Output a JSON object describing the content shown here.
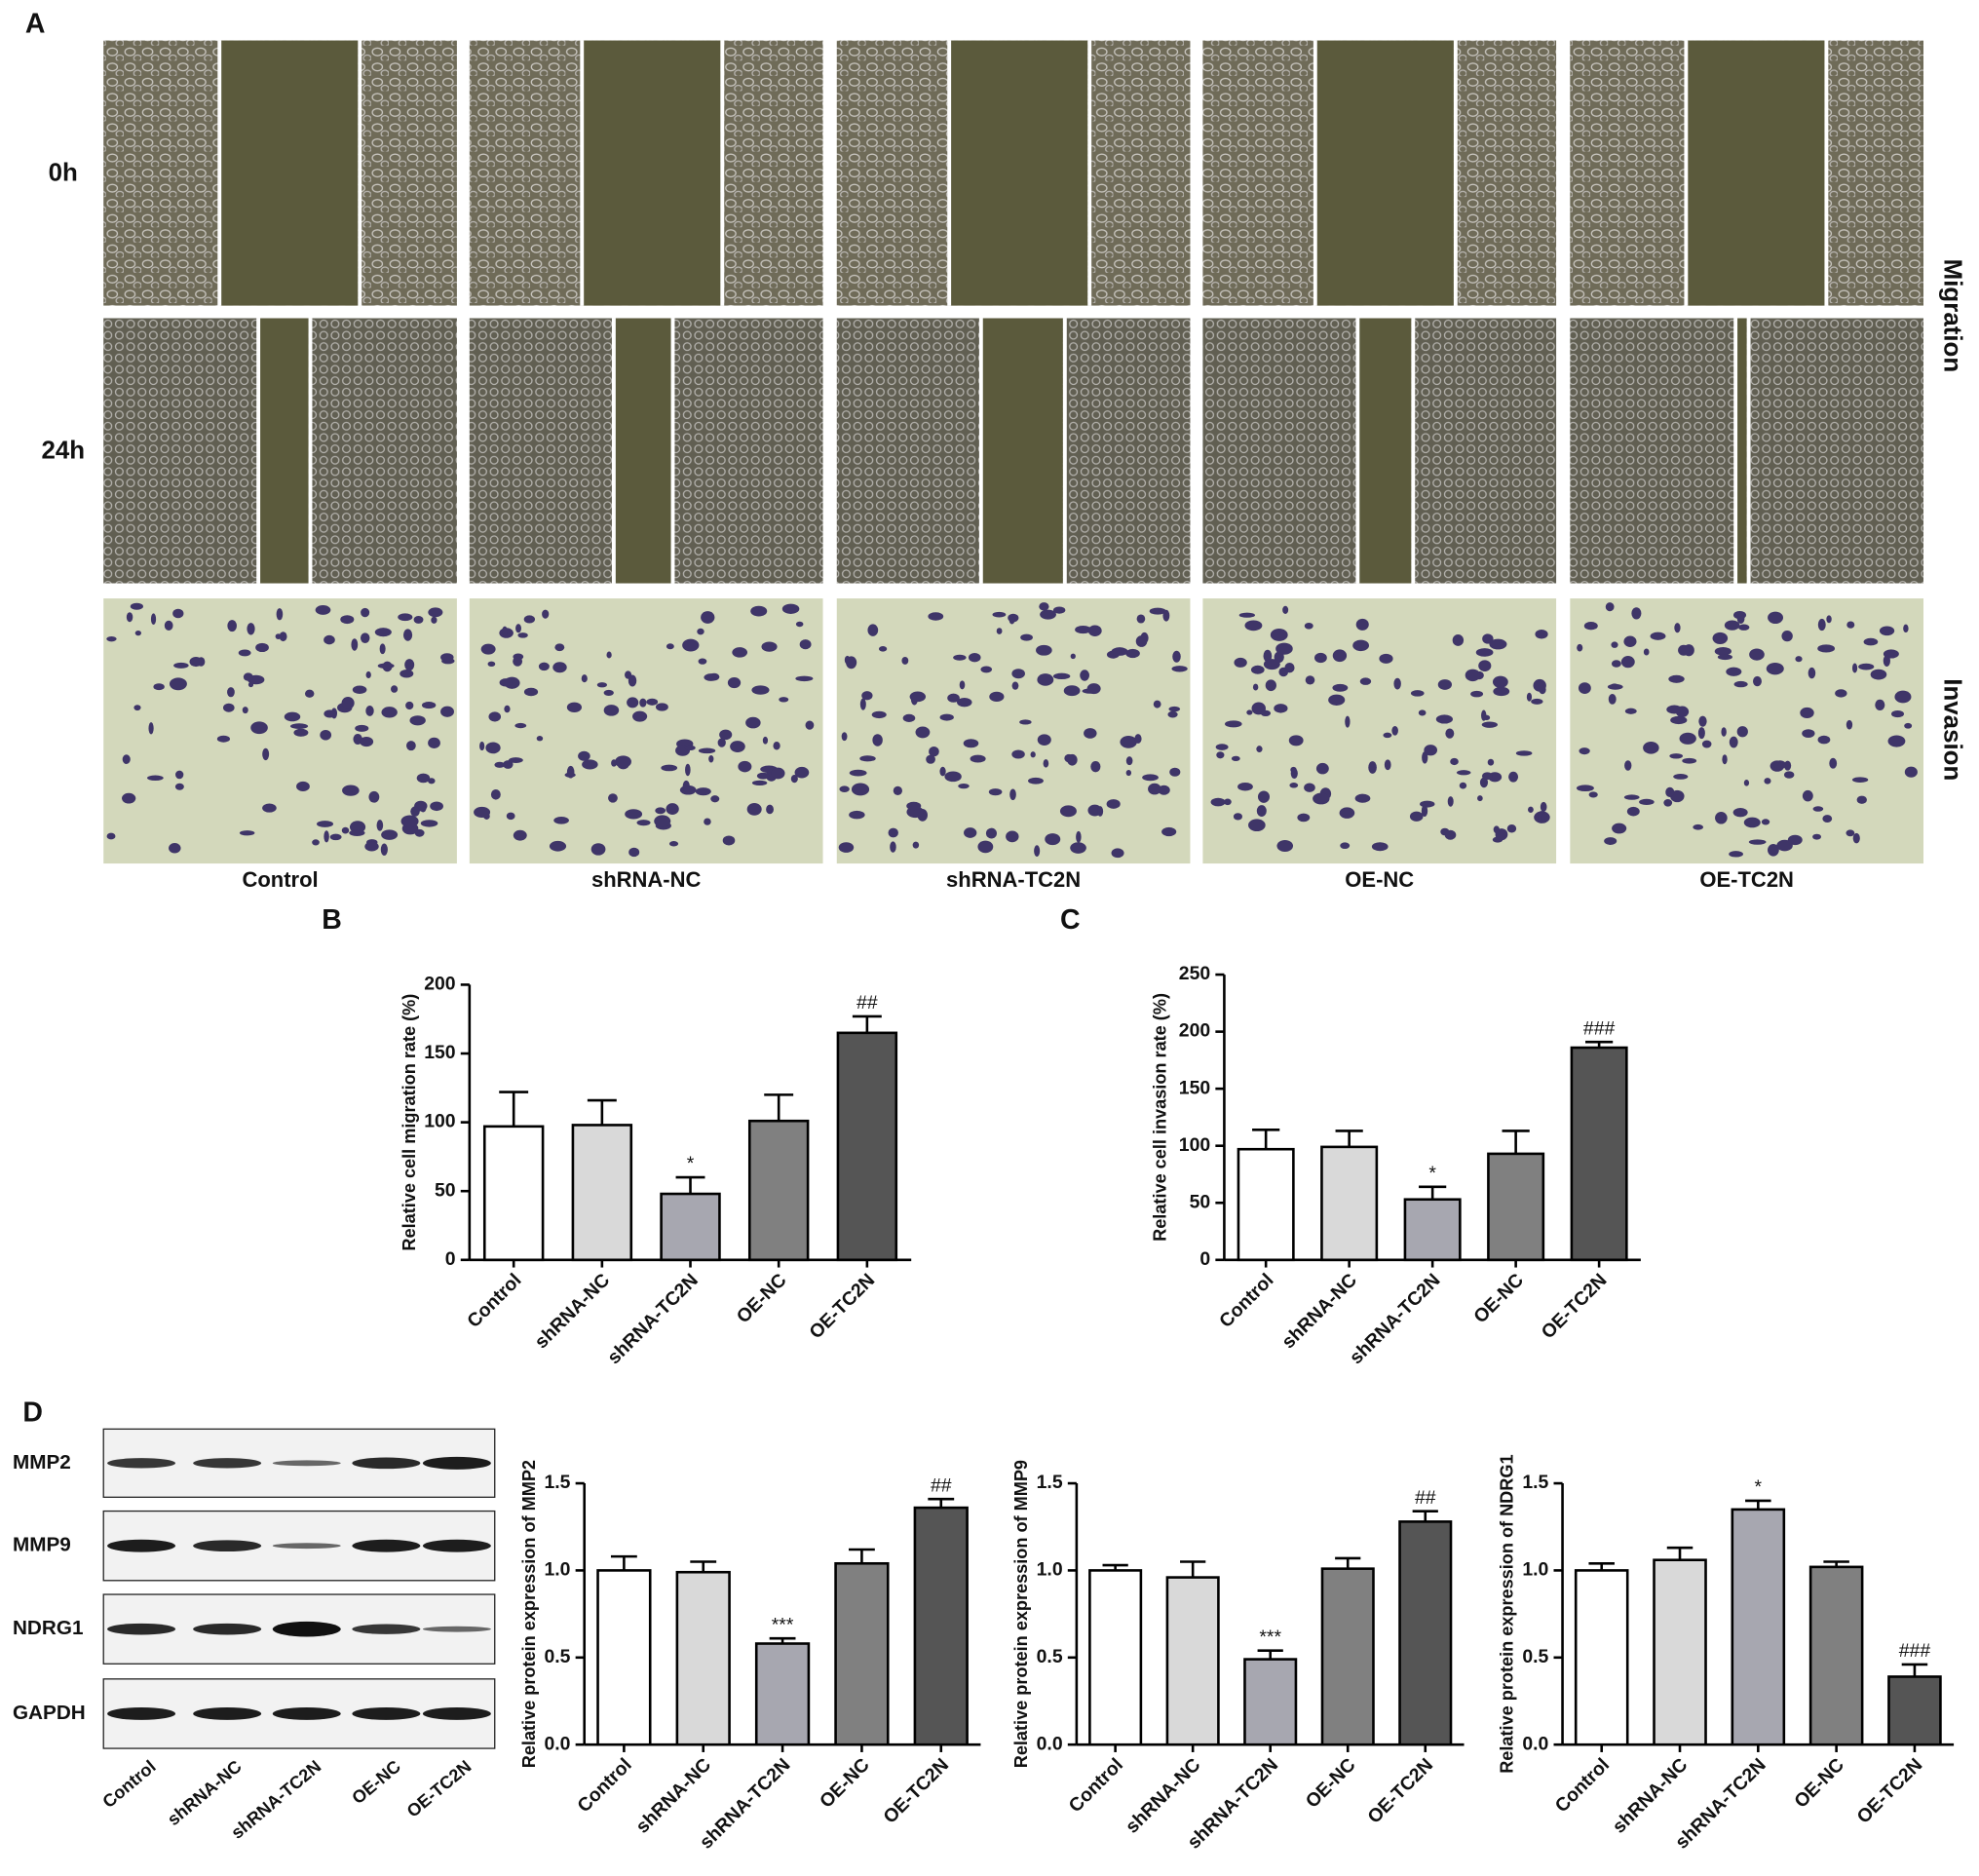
{
  "figure": {
    "panel_labels": [
      "A",
      "B",
      "C",
      "D"
    ],
    "time_labels": [
      "0h",
      "24h"
    ],
    "side_labels": [
      "Migration",
      "Invasion"
    ],
    "groups": [
      "Control",
      "shRNA-NC",
      "shRNA-TC2N",
      "OE-NC",
      "OE-TC2N"
    ],
    "blot": {
      "proteins": [
        "MMP2",
        "MMP9",
        "NDRG1",
        "GAPDH"
      ],
      "lanes": [
        "Control",
        "shRNA-NC",
        "shRNA-TC2N",
        "OE-NC",
        "OE-TC2N"
      ]
    }
  },
  "chart_data": [
    {
      "type": "bar",
      "y_label": "Relative cell migration rate (%)",
      "categories": [
        "Control",
        "shRNA-NC",
        "shRNA-TC2N",
        "OE-NC",
        "OE-TC2N"
      ],
      "values": [
        97,
        98,
        48,
        101,
        165
      ],
      "errors": [
        25,
        18,
        12,
        19,
        12
      ],
      "bar_labels": [
        null,
        null,
        "*",
        null,
        "##"
      ],
      "colors": [
        "#ffffff",
        "#d9d9d9",
        "#a7a7b0",
        "#808080",
        "#555555"
      ],
      "ylim": [
        0,
        200
      ],
      "yticks": [
        0,
        50,
        100,
        150,
        200
      ]
    },
    {
      "type": "bar",
      "y_label": "Relative cell invasion rate (%)",
      "categories": [
        "Control",
        "shRNA-NC",
        "shRNA-TC2N",
        "OE-NC",
        "OE-TC2N"
      ],
      "values": [
        97,
        99,
        53,
        93,
        186
      ],
      "errors": [
        17,
        14,
        11,
        20,
        5
      ],
      "bar_labels": [
        null,
        null,
        "*",
        null,
        "###"
      ],
      "colors": [
        "#ffffff",
        "#d9d9d9",
        "#a7a7b0",
        "#808080",
        "#555555"
      ],
      "ylim": [
        0,
        250
      ],
      "yticks": [
        0,
        50,
        100,
        150,
        200,
        250
      ]
    },
    {
      "type": "bar",
      "y_label": "Relative protein expression of MMP2",
      "categories": [
        "Control",
        "shRNA-NC",
        "shRNA-TC2N",
        "OE-NC",
        "OE-TC2N"
      ],
      "values": [
        1.0,
        0.99,
        0.58,
        1.04,
        1.36
      ],
      "errors": [
        0.08,
        0.06,
        0.03,
        0.08,
        0.05
      ],
      "bar_labels": [
        null,
        null,
        "***",
        null,
        "##"
      ],
      "colors": [
        "#ffffff",
        "#d9d9d9",
        "#a7a7b0",
        "#808080",
        "#555555"
      ],
      "ylim": [
        0,
        1.5
      ],
      "yticks": [
        {
          "value": 0,
          "label": "0.0"
        },
        0.5,
        {
          "value": 1,
          "label": "1.0"
        },
        1.5
      ]
    },
    {
      "type": "bar",
      "y_label": "Relative protein expression of MMP9",
      "categories": [
        "Control",
        "shRNA-NC",
        "shRNA-TC2N",
        "OE-NC",
        "OE-TC2N"
      ],
      "values": [
        1.0,
        0.96,
        0.49,
        1.01,
        1.28
      ],
      "errors": [
        0.03,
        0.09,
        0.05,
        0.06,
        0.06
      ],
      "bar_labels": [
        null,
        null,
        "***",
        null,
        "##"
      ],
      "colors": [
        "#ffffff",
        "#d9d9d9",
        "#a7a7b0",
        "#808080",
        "#555555"
      ],
      "ylim": [
        0,
        1.5
      ],
      "yticks": [
        {
          "value": 0,
          "label": "0.0"
        },
        0.5,
        {
          "value": 1,
          "label": "1.0"
        },
        1.5
      ]
    },
    {
      "type": "bar",
      "y_label": "Relative protein expression of NDRG1",
      "categories": [
        "Control",
        "shRNA-NC",
        "shRNA-TC2N",
        "OE-NC",
        "OE-TC2N"
      ],
      "values": [
        1.0,
        1.06,
        1.35,
        1.02,
        0.39
      ],
      "errors": [
        0.04,
        0.07,
        0.05,
        0.03,
        0.07
      ],
      "bar_labels": [
        null,
        null,
        "*",
        null,
        "###"
      ],
      "colors": [
        "#ffffff",
        "#d9d9d9",
        "#a7a7b0",
        "#808080",
        "#555555"
      ],
      "ylim": [
        0,
        1.5
      ],
      "yticks": [
        {
          "value": 0,
          "label": "0.0"
        },
        0.5,
        {
          "value": 1,
          "label": "1.0"
        },
        1.5
      ]
    }
  ]
}
